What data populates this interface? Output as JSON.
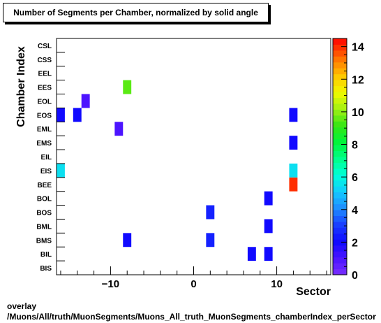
{
  "chart_data": {
    "type": "heatmap",
    "title": "Number of Segments per Chamber, normalized by solid angle",
    "xlabel": "Sector",
    "ylabel": "Chamber Index",
    "xlim": [
      -16.5,
      16.5
    ],
    "x_ticks": [
      -10,
      0,
      10
    ],
    "y_categories": [
      "BIS",
      "BIL",
      "BMS",
      "BML",
      "BOS",
      "BOL",
      "BEE",
      "EIS",
      "EIL",
      "EMS",
      "EML",
      "EOS",
      "EOL",
      "EES",
      "EEL",
      "CSS",
      "CSL"
    ],
    "zlim": [
      0,
      14.5
    ],
    "z_ticks": [
      0,
      2,
      4,
      6,
      8,
      10,
      12,
      14
    ],
    "cells": [
      {
        "x": 7,
        "y": "BIL",
        "z": 2
      },
      {
        "x": 9,
        "y": "BIL",
        "z": 2
      },
      {
        "x": -8,
        "y": "BMS",
        "z": 2
      },
      {
        "x": 2,
        "y": "BMS",
        "z": 2.5
      },
      {
        "x": 9,
        "y": "BML",
        "z": 2
      },
      {
        "x": 2,
        "y": "BOS",
        "z": 2.5
      },
      {
        "x": 9,
        "y": "BOL",
        "z": 2
      },
      {
        "x": 12,
        "y": "BEE",
        "z": 14
      },
      {
        "x": -16,
        "y": "EIS",
        "z": 5.5
      },
      {
        "x": 12,
        "y": "EIS",
        "z": 5.5
      },
      {
        "x": 12,
        "y": "EMS",
        "z": 2
      },
      {
        "x": -9,
        "y": "EML",
        "z": 1
      },
      {
        "x": -16,
        "y": "EOS",
        "z": 2
      },
      {
        "x": -14,
        "y": "EOS",
        "z": 2
      },
      {
        "x": 12,
        "y": "EOS",
        "z": 2
      },
      {
        "x": -13,
        "y": "EOL",
        "z": 1
      },
      {
        "x": -8,
        "y": "EES",
        "z": 9.5
      }
    ]
  },
  "footer": {
    "line1": "overlay",
    "line2": "/Muons/All/truth/MuonSegments/Muons_All_truth_MuonSegments_chamberIndex_perSector"
  }
}
